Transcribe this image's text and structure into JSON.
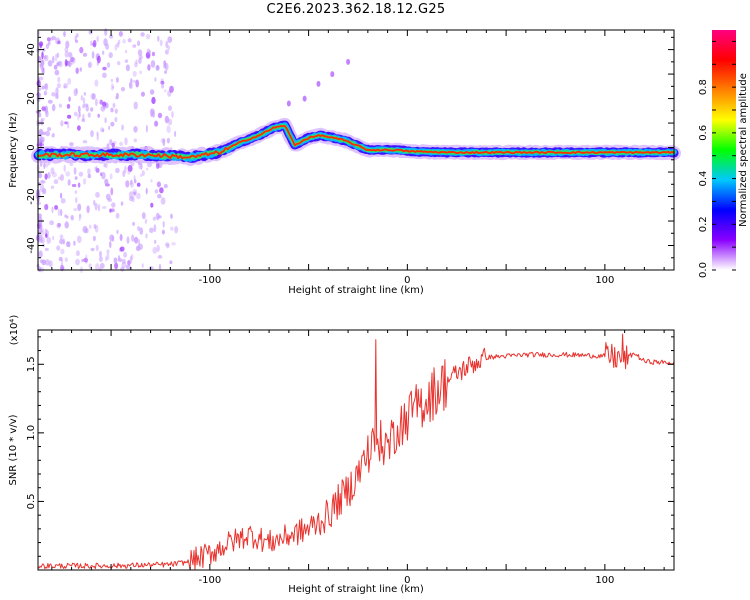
{
  "title": "C2E6.2023.362.18.12.G25",
  "chart_data": [
    {
      "type": "heatmap",
      "xlabel": "Height of straight line (km)",
      "ylabel": "Frequency (Hz)",
      "xlim": [
        -187,
        135
      ],
      "ylim": [
        -50,
        48
      ],
      "x_ticks": [
        -100,
        0,
        100
      ],
      "x_tick_labels": [
        "-100",
        "0",
        "100"
      ],
      "y_ticks": [
        -40,
        -20,
        0,
        20,
        40
      ],
      "y_tick_labels": [
        "-40",
        "-20",
        "0",
        "20",
        "40"
      ],
      "ridge": {
        "x": [
          -187,
          -170,
          -150,
          -130,
          -110,
          -95,
          -85,
          -75,
          -68,
          -62,
          -57,
          -50,
          -44,
          -38,
          -32,
          -26,
          -20,
          -12,
          -5,
          0,
          20,
          50,
          80,
          100,
          135
        ],
        "y": [
          -3,
          -3,
          -3,
          -3,
          -4,
          -2,
          2,
          5,
          8,
          9,
          1,
          4,
          5,
          4,
          3,
          1,
          -1,
          -1,
          -1,
          -1.5,
          -2,
          -2,
          -2,
          -2,
          -2
        ]
      },
      "colorbar": {
        "label": "Normalized spectral amplitude",
        "min": 0,
        "max": 1,
        "ticks": [
          0,
          0.2,
          0.4,
          0.6,
          0.8
        ],
        "tick_labels": [
          "0.0",
          "0.2",
          "0.4",
          "0.6",
          "0.8"
        ],
        "colors": [
          "#ffffff",
          "#8a00ff",
          "#0000ff",
          "#00c8ff",
          "#00ff00",
          "#ffff00",
          "#ff8000",
          "#ff0000",
          "#ff0080"
        ]
      }
    },
    {
      "type": "line",
      "xlabel": "Height of straight line (km)",
      "ylabel": "SNR (10 * v/v)",
      "y_multiplier": "(x10⁴)",
      "xlim": [
        -187,
        135
      ],
      "ylim": [
        0,
        1.75
      ],
      "x_ticks": [
        -100,
        0,
        100
      ],
      "x_tick_labels": [
        "-100",
        "0",
        "100"
      ],
      "y_ticks": [
        0.5,
        1.0,
        1.5
      ],
      "y_tick_labels": [
        "0.5",
        "1.0",
        "1.5"
      ],
      "series": [
        {
          "color": "#e8332e",
          "x": [
            -187,
            -150,
            -120,
            -110,
            -100,
            -90,
            -80,
            -70,
            -60,
            -50,
            -40,
            -35,
            -30,
            -25,
            -20,
            -15,
            -10,
            -5,
            0,
            10,
            20,
            30,
            40,
            60,
            80,
            100,
            110,
            115,
            120,
            135
          ],
          "y": [
            0.03,
            0.03,
            0.04,
            0.06,
            0.12,
            0.2,
            0.26,
            0.2,
            0.25,
            0.3,
            0.4,
            0.5,
            0.58,
            0.7,
            0.85,
            0.95,
            0.9,
            1.05,
            1.12,
            1.25,
            1.38,
            1.48,
            1.55,
            1.57,
            1.57,
            1.56,
            1.54,
            1.58,
            1.52,
            1.51
          ]
        }
      ]
    }
  ]
}
